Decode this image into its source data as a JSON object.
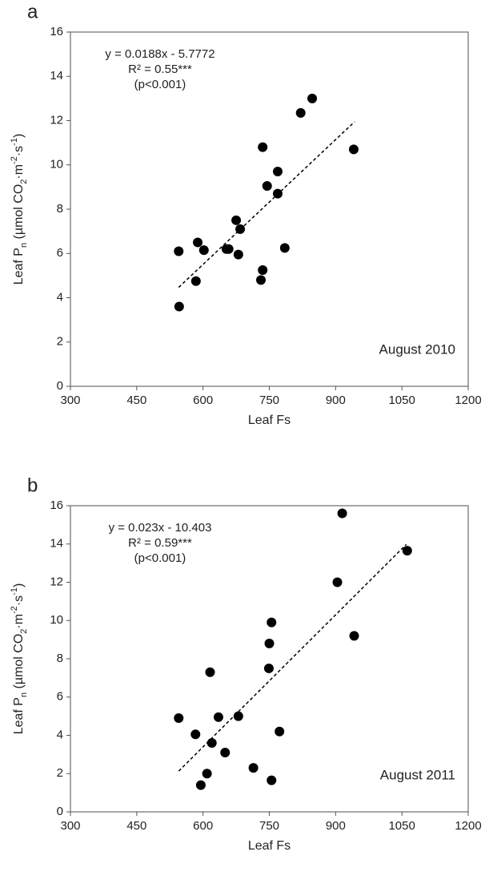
{
  "chart_data": [
    {
      "type": "scatter",
      "panel": "a",
      "x_label": "Leaf Fs",
      "y_label_parts": [
        {
          "text": "Leaf P"
        },
        {
          "text": "n",
          "shift": "sub"
        },
        {
          "text": " (µmol CO"
        },
        {
          "text": "2",
          "shift": "sub"
        },
        {
          "text": "·m"
        },
        {
          "text": "-2",
          "shift": "super"
        },
        {
          "text": "·s"
        },
        {
          "text": "-1",
          "shift": "super"
        },
        {
          "text": ")"
        }
      ],
      "annotations": [
        "y = 0.0188x - 5.7772",
        "R² = 0.55***",
        "(p<0.001)"
      ],
      "label": "August 2010",
      "x": [
        545,
        546,
        588,
        584,
        602,
        653,
        658,
        675,
        684,
        680,
        735,
        745,
        769,
        769,
        735,
        731,
        785,
        821,
        847,
        941
      ],
      "values": [
        6.1,
        3.6,
        6.5,
        4.75,
        6.15,
        6.2,
        6.2,
        7.5,
        7.1,
        5.95,
        10.8,
        9.05,
        9.7,
        8.7,
        5.25,
        4.8,
        6.25,
        12.35,
        13.0,
        10.7
      ],
      "color": "#000000",
      "trendline": {
        "x": [
          545,
          943
        ],
        "y": [
          4.47,
          11.95
        ]
      },
      "xlim": [
        300,
        1200
      ],
      "xticks": [
        300,
        450,
        600,
        750,
        900,
        1050,
        1200
      ],
      "ylim": [
        0,
        16
      ],
      "yticks": [
        0,
        2,
        4,
        6,
        8,
        10,
        12,
        14,
        16
      ]
    },
    {
      "type": "scatter",
      "panel": "b",
      "x_label": "Leaf Fs",
      "y_label_parts": [
        {
          "text": "Leaf P"
        },
        {
          "text": "n",
          "shift": "sub"
        },
        {
          "text": " (µmol CO"
        },
        {
          "text": "2",
          "shift": "sub"
        },
        {
          "text": "·m"
        },
        {
          "text": "-2",
          "shift": "super"
        },
        {
          "text": "·s"
        },
        {
          "text": "-1",
          "shift": "super"
        },
        {
          "text": ")"
        }
      ],
      "annotations": [
        "y = 0.023x - 10.403",
        "R² = 0.59***",
        "(p<0.001)"
      ],
      "label": "August 2011",
      "x": [
        545,
        583,
        595,
        609,
        616,
        620,
        635,
        650,
        680,
        714,
        749,
        750,
        755,
        755,
        773,
        904,
        915,
        942,
        1062
      ],
      "values": [
        4.9,
        4.05,
        1.4,
        2.0,
        7.3,
        3.6,
        4.95,
        3.1,
        5.0,
        2.3,
        7.5,
        8.8,
        9.9,
        1.65,
        4.2,
        12.0,
        15.6,
        9.2,
        13.65
      ],
      "color": "#000000",
      "trendline": {
        "x": [
          545,
          1060
        ],
        "y": [
          2.13,
          13.98
        ]
      },
      "xlim": [
        300,
        1200
      ],
      "xticks": [
        300,
        450,
        600,
        750,
        900,
        1050,
        1200
      ],
      "ylim": [
        0,
        16
      ],
      "yticks": [
        0,
        2,
        4,
        6,
        8,
        10,
        12,
        14,
        16
      ]
    }
  ]
}
